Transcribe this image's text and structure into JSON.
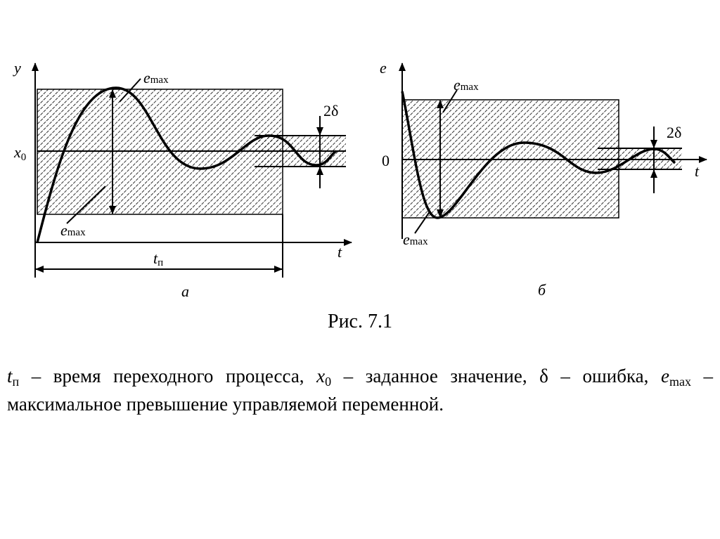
{
  "figure_a": {
    "y_axis": "y",
    "t_axis": "t",
    "e_max_top": {
      "symbol": "e",
      "sub": "max"
    },
    "e_max_bottom": {
      "symbol": "e",
      "sub": "max"
    },
    "two_delta": "2δ",
    "x0": {
      "symbol": "x",
      "sub": "0"
    },
    "t_p": {
      "symbol": "t",
      "sub": "п"
    },
    "label": "а"
  },
  "figure_b": {
    "e_axis": "e",
    "t_axis": "t",
    "zero": "0",
    "e_max_top": {
      "symbol": "e",
      "sub": "max"
    },
    "e_max_bottom": {
      "symbol": "e",
      "sub": "max"
    },
    "two_delta": "2δ",
    "label": "б"
  },
  "caption": "Рис. 7.1",
  "legend": [
    {
      "symbol": "t",
      "sub": "п",
      "text": " – время переходного процесса, "
    },
    {
      "symbol": "x",
      "sub": "0",
      "text": " – заданное значение, "
    },
    {
      "symbol": "δ",
      "text": " – ошибка, "
    },
    {
      "symbol": "e",
      "sub": "max",
      "text": " – максимальное превышение управляемой переменной."
    }
  ]
}
